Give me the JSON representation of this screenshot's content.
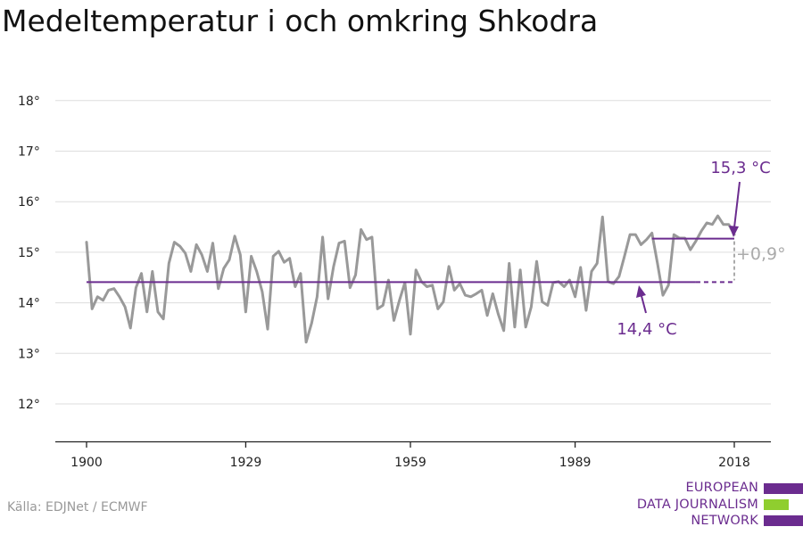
{
  "title": "Medeltemperatur i och omkring Shkodra",
  "source": "Källa: EDJNet / ECMWF",
  "logo": {
    "lines": [
      "EUROPEAN",
      "DATA JOURNALISM",
      "NETWORK"
    ],
    "colors": [
      "#6b2c8f",
      "#8fce2f",
      "#6b2c8f"
    ]
  },
  "colors": {
    "series": "#999999",
    "reference": "#6b2c8f",
    "grid": "#dddddd",
    "axis": "#222222",
    "difference": "#aaaaaa"
  },
  "chart_data": {
    "type": "line",
    "title": "Medeltemperatur i och omkring Shkodra",
    "xlabel": "",
    "ylabel": "",
    "xlim": [
      1900,
      2018
    ],
    "ylim": [
      12,
      18
    ],
    "xticks": [
      1900,
      1929,
      1959,
      1989,
      2018
    ],
    "xtick_labels": [
      "1900",
      "1929",
      "1959",
      "1989",
      "2018"
    ],
    "yticks": [
      12,
      13,
      14,
      15,
      16,
      17,
      18
    ],
    "ytick_labels": [
      "12°",
      "13°",
      "14°",
      "15°",
      "16°",
      "17°",
      "18°"
    ],
    "grid": true,
    "series": [
      {
        "x": [
          1900,
          1901,
          1902,
          1903,
          1904,
          1905,
          1906,
          1907,
          1908,
          1909,
          1910,
          1911,
          1912,
          1913,
          1914,
          1915,
          1916,
          1917,
          1918,
          1919,
          1920,
          1921,
          1922,
          1923,
          1924,
          1925,
          1926,
          1927,
          1928,
          1929,
          1930,
          1931,
          1932,
          1933,
          1934,
          1935,
          1936,
          1937,
          1938,
          1939,
          1940,
          1941,
          1942,
          1943,
          1944,
          1945,
          1946,
          1947,
          1948,
          1949,
          1950,
          1951,
          1952,
          1953,
          1954,
          1955,
          1956,
          1957,
          1958,
          1959,
          1960,
          1961,
          1962,
          1963,
          1964,
          1965,
          1966,
          1967,
          1968,
          1969,
          1970,
          1971,
          1972,
          1973,
          1974,
          1975,
          1976,
          1977,
          1978,
          1979,
          1980,
          1981,
          1982,
          1983,
          1984,
          1985,
          1986,
          1987,
          1988,
          1989,
          1990,
          1991,
          1992,
          1993,
          1994,
          1995,
          1996,
          1997,
          1998,
          1999,
          2000,
          2001,
          2002,
          2003,
          2004,
          2005,
          2006,
          2007,
          2008,
          2009,
          2010,
          2011,
          2012,
          2013,
          2014,
          2015,
          2016,
          2017,
          2018
        ],
        "y": [
          15.2,
          13.88,
          14.12,
          14.05,
          14.25,
          14.28,
          14.12,
          13.92,
          13.5,
          14.3,
          14.58,
          13.82,
          14.62,
          13.82,
          13.68,
          14.78,
          15.2,
          15.12,
          14.98,
          14.62,
          15.15,
          14.95,
          14.62,
          15.18,
          14.28,
          14.68,
          14.85,
          15.32,
          14.95,
          13.82,
          14.92,
          14.62,
          14.22,
          13.48,
          14.92,
          15.02,
          14.8,
          14.88,
          14.32,
          14.58,
          13.22,
          13.6,
          14.12,
          15.3,
          14.08,
          14.72,
          15.18,
          15.22,
          14.3,
          14.55,
          15.45,
          15.25,
          15.3,
          13.88,
          13.95,
          14.45,
          13.65,
          14.05,
          14.4,
          13.38,
          14.65,
          14.42,
          14.32,
          14.35,
          13.88,
          14.02,
          14.72,
          14.25,
          14.38,
          14.15,
          14.12,
          14.18,
          14.25,
          13.75,
          14.18,
          13.78,
          13.45,
          14.78,
          13.52,
          14.65,
          13.52,
          13.92,
          14.82,
          14.02,
          13.95,
          14.4,
          14.42,
          14.32,
          14.45,
          14.12,
          14.7,
          13.85,
          14.62,
          14.78,
          15.7,
          14.42,
          14.38,
          14.52,
          14.92,
          15.35,
          15.35,
          15.15,
          15.25,
          15.38,
          14.78,
          14.15,
          14.35,
          15.35,
          15.28,
          15.28,
          15.05,
          15.22,
          15.42,
          15.58,
          15.55,
          15.72,
          15.55,
          15.55,
          15.35
        ]
      }
    ],
    "reference_lines": [
      {
        "label": "14,4 °C",
        "value": 14.41,
        "x_start": 1900,
        "x_end": 2011
      },
      {
        "label": "15,3 °C",
        "value": 15.27,
        "x_start": 2003,
        "x_end": 2018
      }
    ],
    "annotations": [
      {
        "text": "15,3 °C"
      },
      {
        "text": "14,4 °C"
      },
      {
        "text": "+0,9°"
      }
    ]
  }
}
